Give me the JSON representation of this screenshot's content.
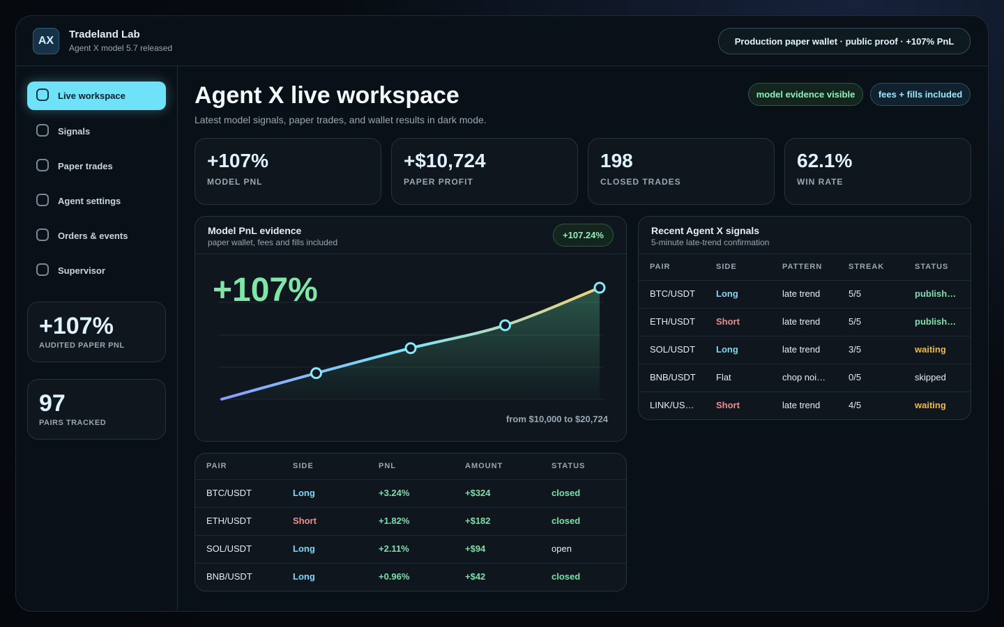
{
  "header": {
    "logo": "AX",
    "title": "Tradeland Lab",
    "subtitle": "Agent X model 5.7 released",
    "badge": "Production paper wallet · public proof · +107% PnL"
  },
  "nav": [
    "Live workspace",
    "Signals",
    "Paper trades",
    "Agent settings",
    "Orders & events",
    "Supervisor"
  ],
  "sidebar_cards": [
    {
      "value": "+107%",
      "label": "AUDITED PAPER PNL"
    },
    {
      "value": "97",
      "label": "PAIRS TRACKED"
    }
  ],
  "workspace": {
    "title": "Agent X live workspace",
    "subtitle": "Latest model signals, paper trades, and wallet results in dark mode.",
    "badges": [
      "model evidence visible",
      "fees + fills included"
    ]
  },
  "stats": [
    {
      "value": "+107%",
      "label": "MODEL PNL"
    },
    {
      "value": "+$10,724",
      "label": "PAPER PROFIT"
    },
    {
      "value": "198",
      "label": "CLOSED TRADES"
    },
    {
      "value": "62.1%",
      "label": "WIN RATE"
    }
  ],
  "pnl_chart": {
    "type": "line",
    "title": "Model PnL evidence",
    "subtitle": "paper wallet, fees and fills included",
    "badge": "+107.24%",
    "headline": "+107%",
    "caption": "from $10,000 to $20,724",
    "values": [
      0,
      25,
      49,
      71,
      107
    ],
    "ylim": [
      0,
      107
    ],
    "colors": [
      "#8a9cff",
      "#7fe3f7",
      "#f0d27a"
    ]
  },
  "signals": {
    "title": "Recent Agent X signals",
    "subtitle": "5-minute late-trend confirmation",
    "columns": [
      "PAIR",
      "SIDE",
      "PATTERN",
      "STREAK",
      "STATUS"
    ],
    "rows": [
      [
        "BTC/USDT",
        "Long",
        "late trend",
        "5/5",
        "publish…"
      ],
      [
        "ETH/USDT",
        "Short",
        "late trend",
        "5/5",
        "publish…"
      ],
      [
        "SOL/USDT",
        "Long",
        "late trend",
        "3/5",
        "waiting"
      ],
      [
        "BNB/USDT",
        "Flat",
        "chop noi…",
        "0/5",
        "skipped"
      ],
      [
        "LINK/US…",
        "Short",
        "late trend",
        "4/5",
        "waiting"
      ]
    ],
    "colors": [
      [
        "#e6edf3",
        "#7dd8f5",
        "#e6edf3",
        "#e6edf3",
        "#7be0a8"
      ],
      [
        "#e6edf3",
        "#f08c8c",
        "#e6edf3",
        "#e6edf3",
        "#7be0a8"
      ],
      [
        "#e6edf3",
        "#7dd8f5",
        "#e6edf3",
        "#e6edf3",
        "#f5b942"
      ],
      [
        "#e6edf3",
        "#e6edf3",
        "#e6edf3",
        "#e6edf3",
        "#e6edf3"
      ],
      [
        "#e6edf3",
        "#f08c8c",
        "#e6edf3",
        "#e6edf3",
        "#f5b942"
      ]
    ]
  },
  "trades": {
    "columns": [
      "PAIR",
      "SIDE",
      "PNL",
      "AMOUNT",
      "STATUS"
    ],
    "rows": [
      [
        "BTC/USDT",
        "Long",
        "+3.24%",
        "+$324",
        "closed"
      ],
      [
        "ETH/USDT",
        "Short",
        "+1.82%",
        "+$182",
        "closed"
      ],
      [
        "SOL/USDT",
        "Long",
        "+2.11%",
        "+$94",
        "open"
      ],
      [
        "BNB/USDT",
        "Long",
        "+0.96%",
        "+$42",
        "closed"
      ]
    ],
    "colors": [
      [
        "#e6edf3",
        "#7dd8f5",
        "#7be0a8",
        "#7be0a8",
        "#7be0a8"
      ],
      [
        "#e6edf3",
        "#f08c8c",
        "#7be0a8",
        "#7be0a8",
        "#7be0a8"
      ],
      [
        "#e6edf3",
        "#7dd8f5",
        "#7be0a8",
        "#7be0a8",
        "#e6edf3"
      ],
      [
        "#e6edf3",
        "#7dd8f5",
        "#7be0a8",
        "#7be0a8",
        "#7be0a8"
      ]
    ]
  }
}
